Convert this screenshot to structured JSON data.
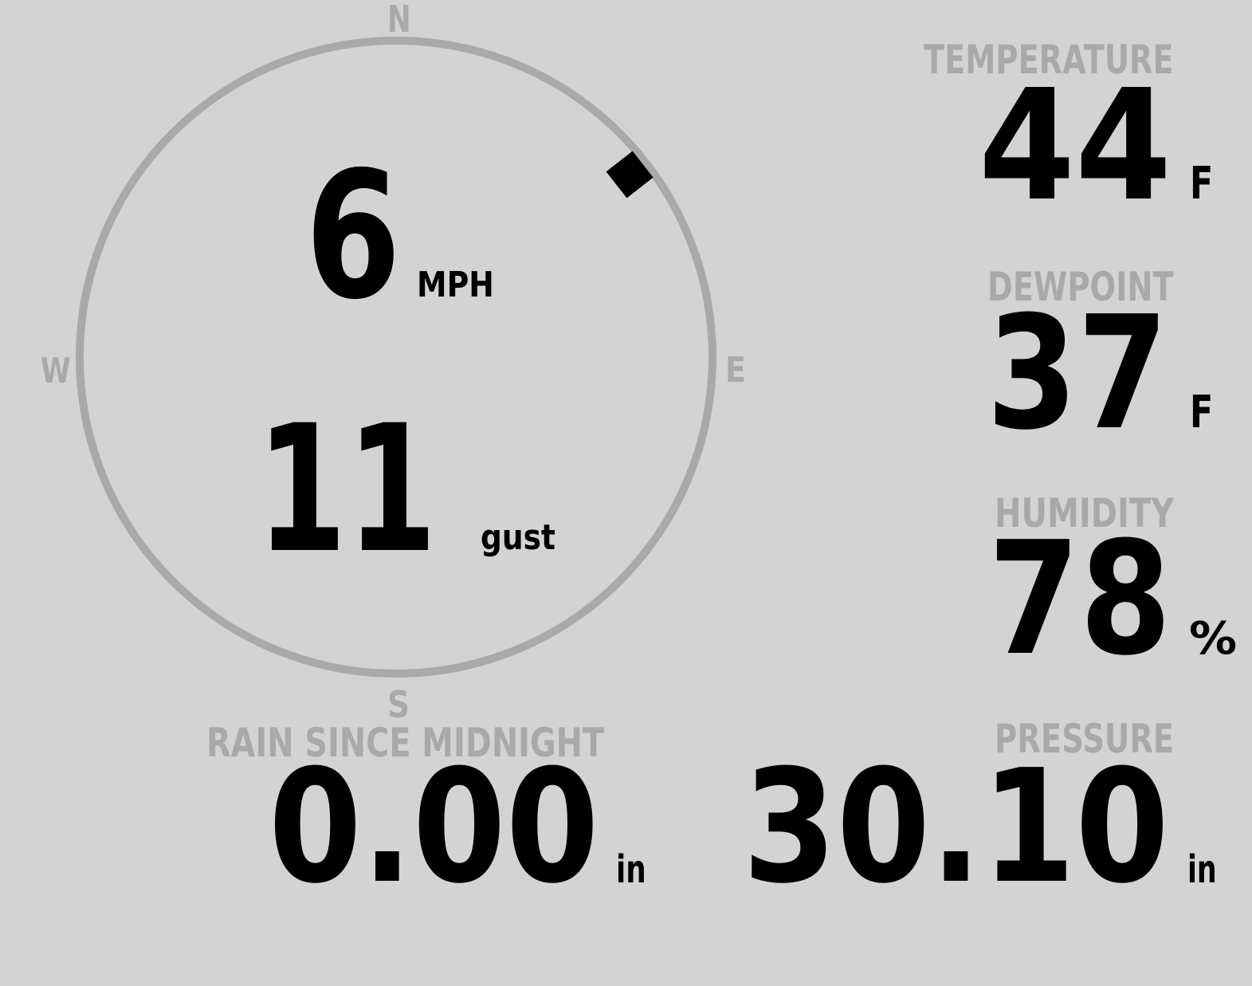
{
  "compass": {
    "north": "N",
    "south": "S",
    "east": "E",
    "west": "W",
    "wind_direction_deg": 52,
    "ring_color": "#a9a9a9"
  },
  "wind": {
    "speed": "6",
    "speed_unit": "MPH",
    "gust": "11",
    "gust_unit": "gust"
  },
  "temperature": {
    "label": "TEMPERATURE",
    "value": "44",
    "unit": "F"
  },
  "dewpoint": {
    "label": "DEWPOINT",
    "value": "37",
    "unit": "F"
  },
  "humidity": {
    "label": "HUMIDITY",
    "value": "78",
    "unit": "%"
  },
  "rain": {
    "label": "RAIN SINCE MIDNIGHT",
    "value": "0.00",
    "unit": "in"
  },
  "pressure": {
    "label": "PRESSURE",
    "value": "30.10",
    "unit": "in"
  }
}
